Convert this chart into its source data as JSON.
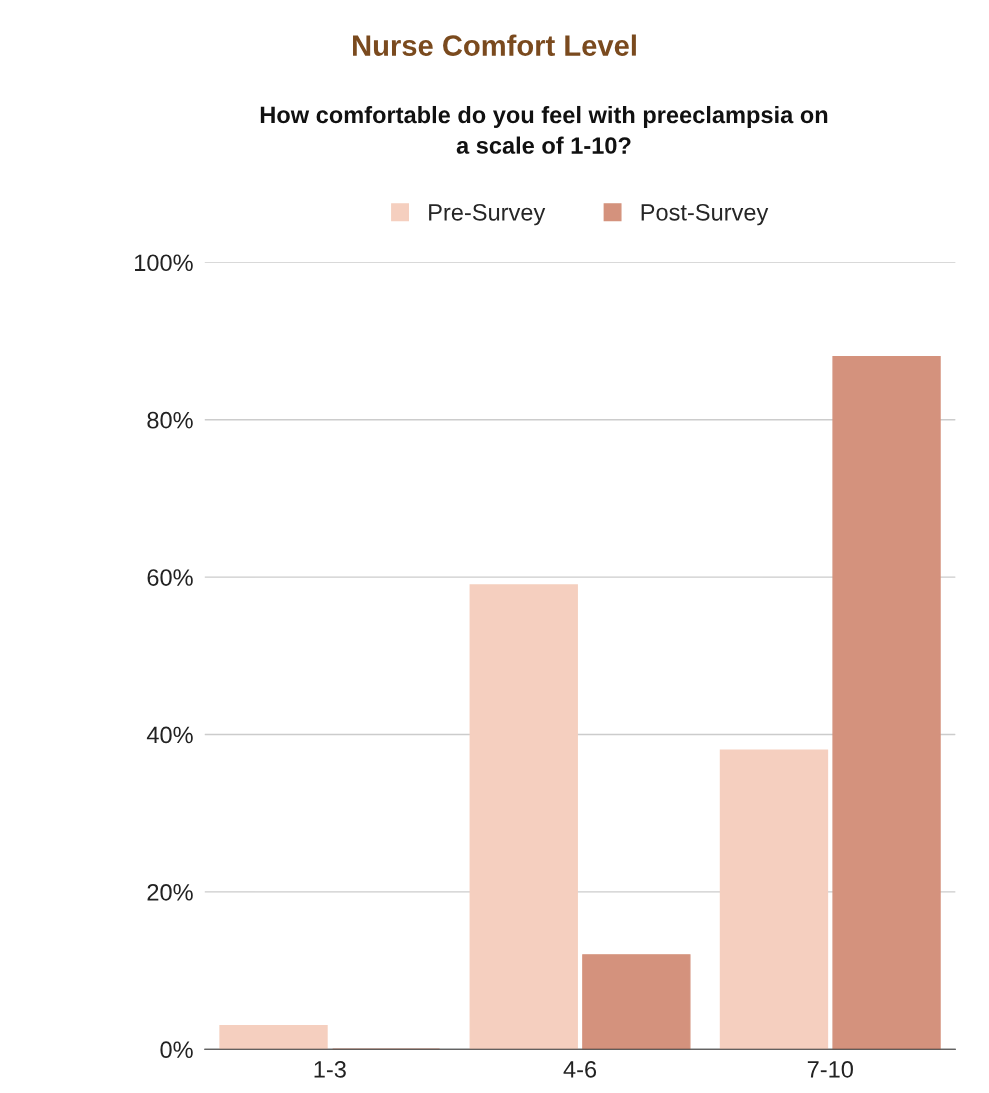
{
  "chart_data": {
    "type": "bar",
    "title": "Nurse Comfort Level",
    "subtitle": "How comfortable do you feel with preeclampsia on\na scale of 1-10?",
    "categories": [
      "1-3",
      "4-6",
      "7-10"
    ],
    "series": [
      {
        "name": "Pre-Survey",
        "color": "#f5cfbf",
        "values": [
          3,
          59,
          38
        ]
      },
      {
        "name": "Post-Survey",
        "color": "#d4927d",
        "values": [
          0,
          12,
          88
        ]
      }
    ],
    "ylim": [
      0,
      100
    ],
    "yticks": [
      {
        "value": 0,
        "label": "0%"
      },
      {
        "value": 20,
        "label": "20%"
      },
      {
        "value": 40,
        "label": "40%"
      },
      {
        "value": 60,
        "label": "60%"
      },
      {
        "value": 80,
        "label": "80%"
      },
      {
        "value": 100,
        "label": "100%"
      }
    ],
    "grid": "y",
    "legend": "top"
  }
}
